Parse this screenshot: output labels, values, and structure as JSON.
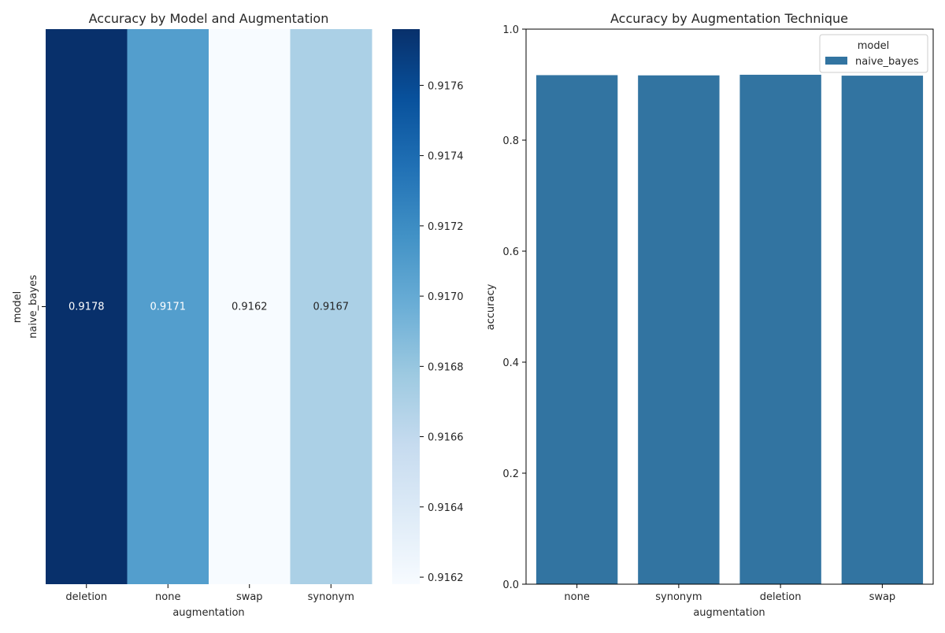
{
  "chart_data": [
    {
      "type": "heatmap",
      "title": "Accuracy by Model and Augmentation",
      "xlabel": "augmentation",
      "ylabel": "model",
      "x_categories": [
        "deletion",
        "none",
        "swap",
        "synonym"
      ],
      "y_categories": [
        "naive_bayes"
      ],
      "values": [
        [
          0.9178,
          0.9171,
          0.9162,
          0.9167
        ]
      ],
      "value_labels": [
        "0.9178",
        "0.9171",
        "0.9162",
        "0.9167"
      ],
      "colormap": "Blues",
      "colorbar": {
        "range": [
          0.91618,
          0.91776
        ],
        "ticks": [
          0.9162,
          0.9164,
          0.9166,
          0.9168,
          0.917,
          0.9172,
          0.9174,
          0.9176
        ],
        "tick_labels": [
          "0.9162",
          "0.9164",
          "0.9166",
          "0.9168",
          "0.9170",
          "0.9172",
          "0.9174",
          "0.9176"
        ]
      },
      "cell_colors": [
        "#08306b",
        "#539ecd",
        "#f7fbff",
        "#abd0e6"
      ],
      "cell_text_colors": [
        "#ffffff",
        "#ffffff",
        "#262626",
        "#262626"
      ]
    },
    {
      "type": "bar",
      "title": "Accuracy by Augmentation Technique",
      "xlabel": "augmentation",
      "ylabel": "accuracy",
      "categories": [
        "none",
        "synonym",
        "deletion",
        "swap"
      ],
      "series": [
        {
          "name": "naive_bayes",
          "values": [
            0.9171,
            0.9167,
            0.9178,
            0.9162
          ],
          "color": "#3274a1"
        }
      ],
      "ylim": [
        0,
        1.0
      ],
      "yticks": [
        0.0,
        0.2,
        0.4,
        0.6,
        0.8,
        1.0
      ],
      "ytick_labels": [
        "0.0",
        "0.2",
        "0.4",
        "0.6",
        "0.8",
        "1.0"
      ],
      "legend": {
        "title": "model",
        "placement": "top-right"
      },
      "grid": false
    }
  ]
}
